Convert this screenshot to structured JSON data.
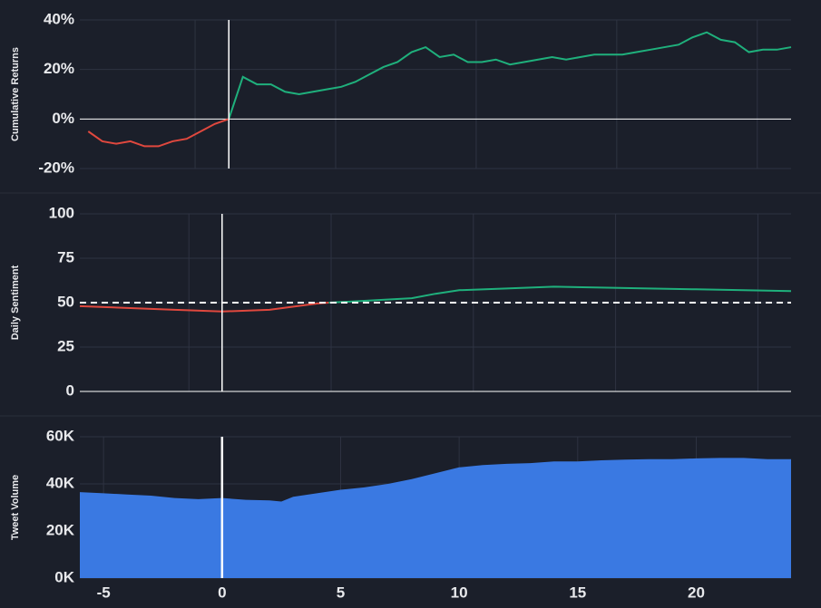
{
  "chart_data": [
    {
      "type": "line",
      "ylabel": "Cumulative Returns",
      "xlim": [
        -5.3,
        20
      ],
      "ylim": [
        -20,
        40
      ],
      "yticks": [
        {
          "value": -20,
          "label": "-20%"
        },
        {
          "value": 0,
          "label": "0%"
        },
        {
          "value": 20,
          "label": "20%"
        },
        {
          "value": 40,
          "label": "40%"
        }
      ],
      "xgrid": [
        -1.2,
        3.8,
        8.8,
        13.8,
        18.8
      ],
      "grid": true,
      "vline": 0,
      "series": [
        {
          "color": "#e0483e",
          "x": [
            -5,
            -4.5,
            -4,
            -3.5,
            -3,
            -2.5,
            -2,
            -1.5,
            -1,
            -0.5,
            0
          ],
          "values": [
            -5,
            -9,
            -10,
            -9,
            -11,
            -11,
            -9,
            -8,
            -5,
            -2,
            0
          ]
        },
        {
          "color": "#1fb07c",
          "x": [
            0,
            0.5,
            1,
            1.5,
            2,
            2.5,
            3,
            3.5,
            4,
            4.5,
            5,
            5.5,
            6,
            6.5,
            7,
            7.5,
            8,
            8.5,
            9,
            9.5,
            10,
            10.5,
            11,
            11.5,
            12,
            12.5,
            13,
            13.5,
            14,
            14.5,
            15,
            15.5,
            16,
            16.5,
            17,
            17.5,
            18,
            18.5,
            19,
            19.5,
            20
          ],
          "values": [
            0,
            17,
            14,
            14,
            11,
            10,
            11,
            12,
            13,
            15,
            18,
            21,
            23,
            27,
            29,
            25,
            26,
            23,
            23,
            24,
            22,
            23,
            24,
            25,
            24,
            25,
            26,
            26,
            26,
            27,
            28,
            29,
            30,
            33,
            35,
            32,
            31,
            27,
            28,
            28,
            29
          ]
        }
      ]
    },
    {
      "type": "line",
      "ylabel": "Daily Sentiment",
      "xlim": [
        -6,
        24
      ],
      "ylim": [
        0,
        100
      ],
      "yticks": [
        0,
        25,
        50,
        75,
        100
      ],
      "xgrid": [
        -1.4,
        4.6,
        10.6,
        16.6,
        22.6
      ],
      "grid": true,
      "vline": 0,
      "hline": 50,
      "series": [
        {
          "color": "#e0483e",
          "x": [
            -6,
            -4,
            -2,
            0,
            2,
            4,
            4.5
          ],
          "values": [
            48,
            47,
            46,
            45,
            46,
            49.5,
            50
          ]
        },
        {
          "color": "#1fb07c",
          "x": [
            4.5,
            6,
            8,
            9,
            10,
            12,
            14,
            16,
            18,
            20,
            22,
            24
          ],
          "values": [
            50,
            51,
            52.5,
            55,
            57,
            58,
            59,
            58.5,
            58,
            57.5,
            57,
            56.5
          ]
        }
      ]
    },
    {
      "type": "area",
      "ylabel": "Tweet Volume",
      "xlim": [
        -6,
        24
      ],
      "ylim": [
        0,
        60000
      ],
      "yticks": [
        {
          "value": 0,
          "label": "0K"
        },
        {
          "value": 20000,
          "label": "20K"
        },
        {
          "value": 40000,
          "label": "40K"
        },
        {
          "value": 60000,
          "label": "60K"
        }
      ],
      "xticks": [
        -5,
        0,
        5,
        10,
        15,
        20
      ],
      "grid": true,
      "vline": 0,
      "series": [
        {
          "color": "#3a79e2",
          "x": [
            -6,
            -5,
            -4,
            -3,
            -2,
            -1,
            0,
            1,
            2,
            2.5,
            3,
            4,
            5,
            6,
            7,
            8,
            9,
            10,
            11,
            12,
            13,
            14,
            15,
            16,
            17,
            18,
            19,
            20,
            21,
            22,
            23,
            24
          ],
          "values": [
            36500,
            36000,
            35500,
            35000,
            34000,
            33500,
            34000,
            33200,
            33000,
            32500,
            34500,
            36000,
            37500,
            38500,
            40000,
            42000,
            44500,
            47000,
            48000,
            48500,
            48800,
            49500,
            49500,
            50000,
            50300,
            50500,
            50500,
            50800,
            51000,
            51000,
            50500,
            50500
          ]
        }
      ]
    }
  ]
}
